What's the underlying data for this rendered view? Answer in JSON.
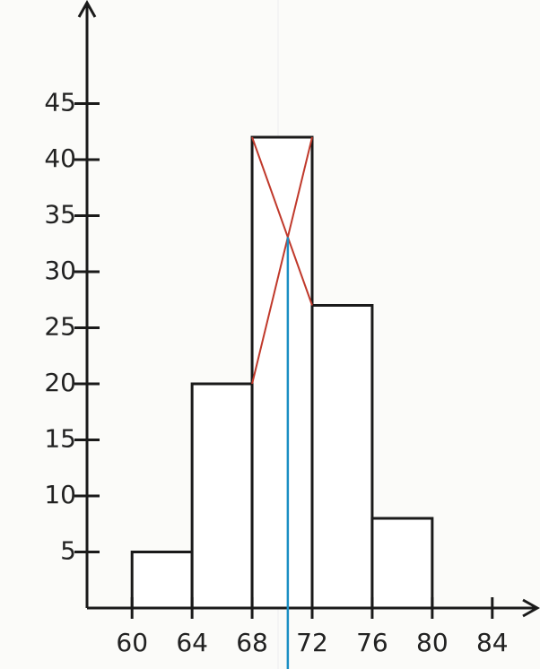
{
  "chart_data": {
    "type": "histogram",
    "bins": [
      60,
      64,
      68,
      72,
      76,
      80
    ],
    "values": [
      5,
      20,
      42,
      27,
      8
    ],
    "color": "#ffffff",
    "xlim": [
      57,
      87
    ],
    "ylim": [
      0,
      54
    ],
    "xticks": [
      60,
      64,
      68,
      72,
      76,
      80,
      84
    ],
    "yticks": [
      5,
      10,
      15,
      20,
      25,
      30,
      35,
      40,
      45
    ]
  }
}
